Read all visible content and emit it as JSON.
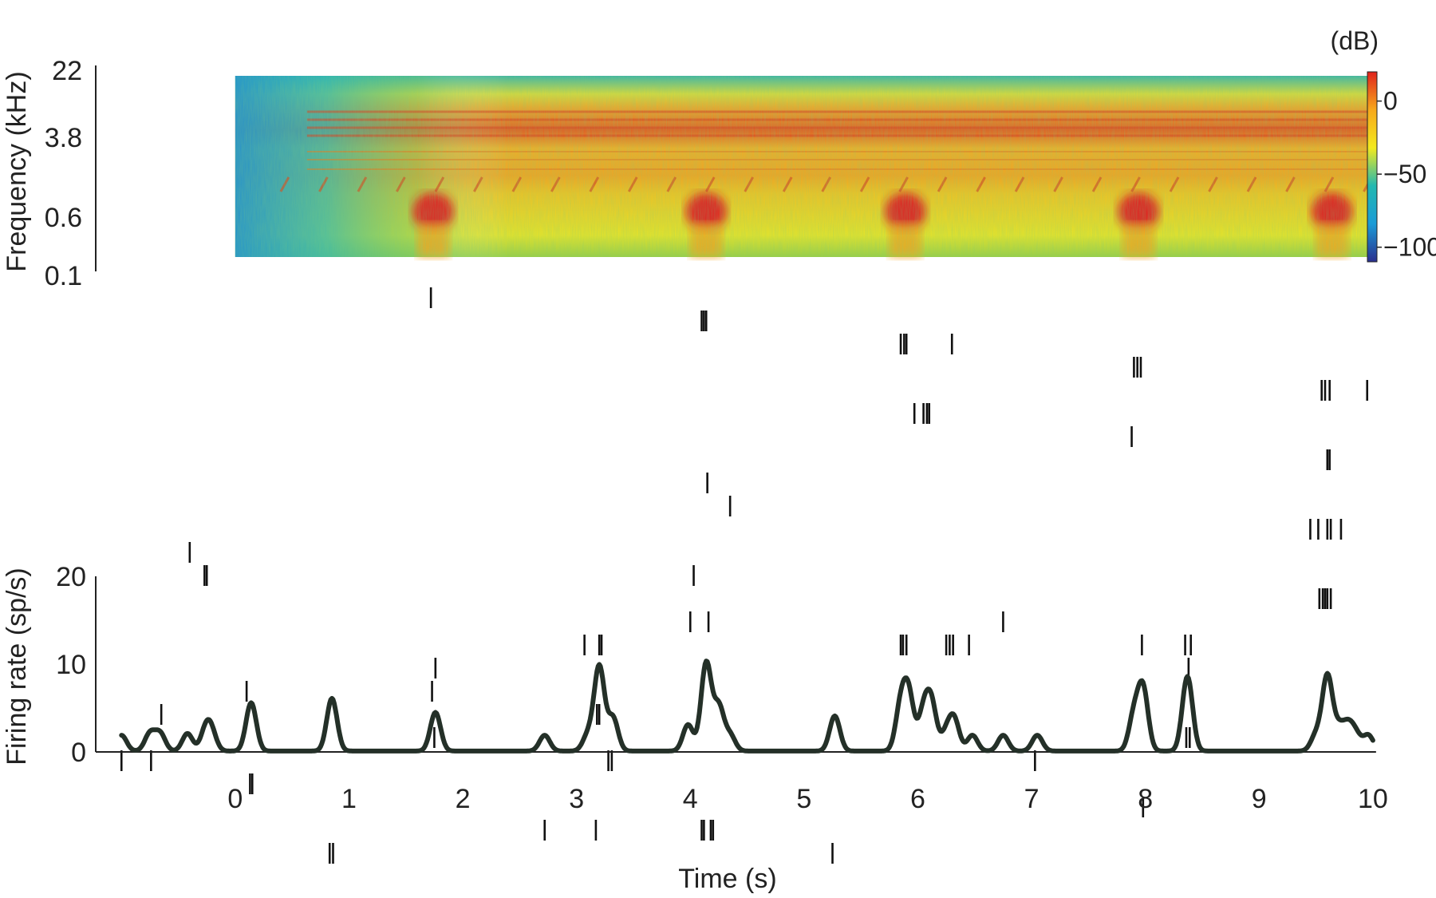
{
  "chart_data": [
    {
      "type": "heatmap",
      "ylabel": "Frequency (kHz)",
      "yticks": [
        "22",
        "3.8",
        "0.6",
        "0.1"
      ],
      "y_scale": "log",
      "xlim": [
        0,
        10
      ],
      "colorbar": {
        "label": "(dB)",
        "ticks": [
          0,
          -50,
          -100
        ],
        "tick_labels": [
          "0",
          "−50",
          "−100"
        ],
        "range": [
          -110,
          20
        ],
        "colormap": [
          "#2a2f8e",
          "#1a9bd7",
          "#22b8b0",
          "#f3ea1e",
          "#f7a81b",
          "#e0231c"
        ]
      },
      "events": [
        {
          "t": 1.6,
          "peak_db": 12
        },
        {
          "t": 4.0,
          "peak_db": 12
        },
        {
          "t": 5.75,
          "peak_db": 12
        },
        {
          "t": 7.8,
          "peak_db": 12
        },
        {
          "t": 9.5,
          "peak_db": 12
        }
      ]
    },
    {
      "type": "scatter",
      "subtype": "raster",
      "trials": [
        [
          1.72
        ],
        [
          4.1,
          4.12,
          4.14
        ],
        [
          5.85,
          5.88,
          5.9,
          6.3
        ],
        [
          7.9,
          7.93,
          7.96
        ],
        [
          9.55,
          9.58,
          9.62,
          9.95
        ],
        [
          5.97,
          6.05,
          6.08,
          6.1
        ],
        [
          7.88
        ],
        [
          9.6,
          9.62
        ],
        [
          4.15
        ],
        [
          4.35
        ],
        [
          9.45,
          9.52,
          9.6,
          9.63,
          9.72
        ],
        [
          -0.4
        ],
        [
          -0.27,
          -0.25,
          4.03
        ],
        [
          9.53,
          9.56,
          9.58,
          9.6,
          9.63
        ],
        [
          4.0,
          4.16,
          6.75
        ],
        [
          3.07,
          3.2,
          3.22,
          5.85,
          5.87,
          5.9,
          6.25,
          6.28,
          6.31,
          6.45,
          7.97,
          8.35,
          8.4
        ],
        [
          1.76,
          8.38
        ],
        [
          0.1,
          1.73
        ],
        [
          -0.65,
          3.18,
          3.2
        ],
        [
          1.75,
          8.36,
          8.39
        ],
        [
          -1.0,
          -0.74,
          3.28,
          3.31,
          7.03
        ],
        [
          0.13,
          0.15
        ],
        [
          7.98
        ],
        [
          2.72,
          3.17,
          4.1,
          4.12,
          4.18,
          4.2
        ],
        [
          0.83,
          0.86,
          5.25
        ]
      ]
    },
    {
      "type": "line",
      "ylabel": "Firing rate (sp/s)",
      "xlabel": "Time (s)",
      "xlim": [
        -1.1,
        10
      ],
      "ylim": [
        0,
        20
      ],
      "xticks": [
        0,
        1,
        2,
        3,
        4,
        5,
        6,
        7,
        8,
        9,
        10
      ],
      "yticks": [
        0,
        10,
        20
      ],
      "peaks": [
        [
          -1.0,
          1.8
        ],
        [
          -0.75,
          2.0
        ],
        [
          -0.66,
          2.0
        ],
        [
          -0.42,
          2.0
        ],
        [
          -0.26,
          2.2
        ],
        [
          -0.21,
          2.0
        ],
        [
          0.14,
          5.5
        ],
        [
          0.85,
          6.0
        ],
        [
          1.76,
          4.4
        ],
        [
          2.72,
          1.8
        ],
        [
          3.1,
          1.8
        ],
        [
          3.2,
          9.6
        ],
        [
          3.32,
          3.8
        ],
        [
          3.98,
          3.0
        ],
        [
          4.14,
          10.0
        ],
        [
          4.25,
          5.0
        ],
        [
          4.35,
          1.8
        ],
        [
          5.27,
          4.0
        ],
        [
          5.85,
          5.0
        ],
        [
          5.92,
          6.2
        ],
        [
          6.05,
          4.3
        ],
        [
          6.12,
          5.2
        ],
        [
          6.25,
          2.0
        ],
        [
          6.32,
          3.5
        ],
        [
          6.48,
          1.8
        ],
        [
          6.75,
          1.8
        ],
        [
          7.05,
          1.8
        ],
        [
          7.9,
          4.0
        ],
        [
          7.98,
          7.0
        ],
        [
          8.37,
          8.5
        ],
        [
          9.5,
          1.8
        ],
        [
          9.6,
          8.5
        ],
        [
          9.7,
          2.4
        ],
        [
          9.78,
          2.6
        ],
        [
          9.85,
          1.8
        ],
        [
          9.96,
          1.8
        ]
      ],
      "baseline": 0.1
    }
  ]
}
